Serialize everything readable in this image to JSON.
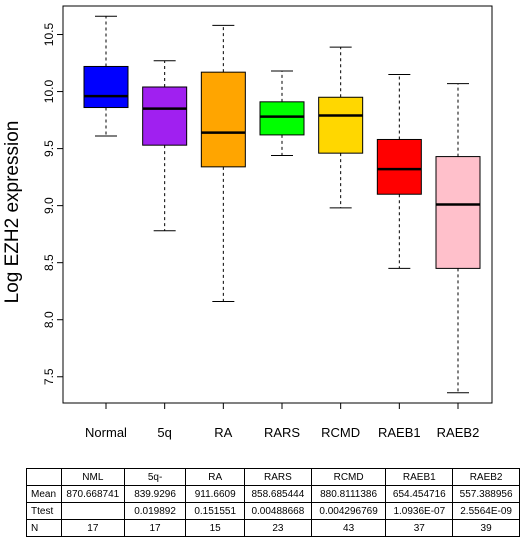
{
  "chart_data": {
    "type": "boxplot",
    "ylabel": "Log EZH2 expression",
    "ylim": [
      7.27,
      10.75
    ],
    "yticks": [
      "7.5",
      "8.0",
      "8.5",
      "9.0",
      "9.5",
      "10.0",
      "10.5"
    ],
    "categories": [
      "Normal",
      "5q",
      "RA",
      "RARS",
      "RCMD",
      "RAEB1",
      "RAEB2"
    ],
    "boxes": [
      {
        "whisker_low": 9.61,
        "q1": 9.86,
        "median": 9.96,
        "q3": 10.22,
        "whisker_high": 10.66,
        "color": "#0000FF"
      },
      {
        "whisker_low": 8.78,
        "q1": 9.53,
        "median": 9.85,
        "q3": 10.04,
        "whisker_high": 10.27,
        "color": "#A020F0"
      },
      {
        "whisker_low": 8.16,
        "q1": 9.34,
        "median": 9.64,
        "q3": 10.17,
        "whisker_high": 10.58,
        "color": "#FFA500"
      },
      {
        "whisker_low": 9.44,
        "q1": 9.62,
        "median": 9.78,
        "q3": 9.91,
        "whisker_high": 10.18,
        "color": "#00FF00"
      },
      {
        "whisker_low": 8.98,
        "q1": 9.46,
        "median": 9.79,
        "q3": 9.95,
        "whisker_high": 10.39,
        "color": "#FFD700"
      },
      {
        "whisker_low": 8.45,
        "q1": 9.1,
        "median": 9.32,
        "q3": 9.58,
        "whisker_high": 10.15,
        "color": "#FF0000"
      },
      {
        "whisker_low": 7.36,
        "q1": 8.45,
        "median": 9.01,
        "q3": 9.43,
        "whisker_high": 10.07,
        "color": "#FFC0CB"
      }
    ]
  },
  "table": {
    "headers": [
      "",
      "NML",
      "5q-",
      "RA",
      "RARS",
      "RCMD",
      "RAEB1",
      "RAEB2"
    ],
    "rows": [
      {
        "label": "Mean",
        "values": [
          "870.668741",
          "839.9296",
          "911.6609",
          "858.685444",
          "880.8111386",
          "654.454716",
          "557.388956"
        ]
      },
      {
        "label": "Ttest",
        "values": [
          "",
          "0.019892",
          "0.151551",
          "0.00488668",
          "0.004296769",
          "1.0936E-07",
          "2.5564E-09"
        ]
      },
      {
        "label": "N",
        "values": [
          "17",
          "17",
          "15",
          "23",
          "43",
          "37",
          "39"
        ]
      }
    ]
  }
}
